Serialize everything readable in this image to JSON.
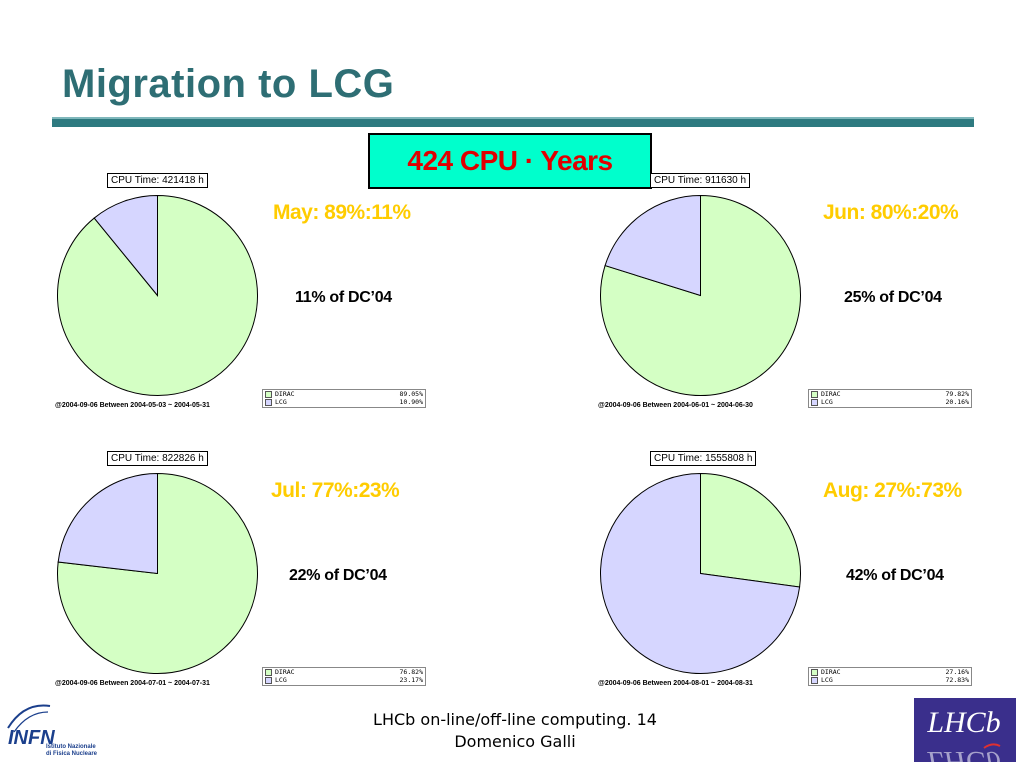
{
  "slide": {
    "title": "Migration to LCG",
    "total_label": "424 CPU · Years",
    "footer_line1": "LHCb on-line/off-line computing. 14",
    "footer_line2": "Domenico Galli",
    "logo_left_text": "INFN",
    "logo_left_sub1": "Istituto Nazionale",
    "logo_left_sub2": "di Fisica Nucleare",
    "logo_right_text": "LHCb"
  },
  "colors": {
    "title": "#2e6e74",
    "dirac": "#d4ffc4",
    "lcg": "#d6d6ff",
    "month_label": "#ffcc00",
    "total_text": "#e00000",
    "total_bg": "#00ffcc"
  },
  "panels": [
    {
      "cpu_time": "CPU Time: 421418 h",
      "month_label": "May: 89%:11%",
      "dc_label": "11% of DC’04",
      "footnote": "@2004-09-06  Between  2004-05-03 ~ 2004-05-31",
      "legend": [
        {
          "name": "DIRAC",
          "pct": "89.05%"
        },
        {
          "name": "LCG",
          "pct": "10.90%"
        }
      ]
    },
    {
      "cpu_time": "CPU Time: 911630 h",
      "month_label": "Jun: 80%:20%",
      "dc_label": "25% of DC’04",
      "footnote": "@2004-09-06  Between  2004-06-01 ~ 2004-06-30",
      "legend": [
        {
          "name": "DIRAC",
          "pct": "79.82%"
        },
        {
          "name": "LCG",
          "pct": "20.16%"
        }
      ]
    },
    {
      "cpu_time": "CPU Time: 822826 h",
      "month_label": "Jul: 77%:23%",
      "dc_label": "22% of DC’04",
      "footnote": "@2004-09-06  Between  2004-07-01 ~ 2004-07-31",
      "legend": [
        {
          "name": "DIRAC",
          "pct": "76.82%"
        },
        {
          "name": "LCG",
          "pct": "23.17%"
        }
      ]
    },
    {
      "cpu_time": "CPU Time: 1555808 h",
      "month_label": "Aug: 27%:73%",
      "dc_label": "42% of DC’04",
      "footnote": "@2004-09-06  Between  2004-08-01 ~ 2004-08-31",
      "legend": [
        {
          "name": "DIRAC",
          "pct": "27.16%"
        },
        {
          "name": "LCG",
          "pct": "72.83%"
        }
      ]
    }
  ],
  "chart_data": [
    {
      "type": "pie",
      "categories": [
        "DIRAC",
        "LCG"
      ],
      "values": [
        89.05,
        10.9
      ],
      "title": "CPU Time: 421418 h"
    },
    {
      "type": "pie",
      "categories": [
        "DIRAC",
        "LCG"
      ],
      "values": [
        79.82,
        20.16
      ],
      "title": "CPU Time: 911630 h"
    },
    {
      "type": "pie",
      "categories": [
        "DIRAC",
        "LCG"
      ],
      "values": [
        76.82,
        23.17
      ],
      "title": "CPU Time: 822826 h"
    },
    {
      "type": "pie",
      "categories": [
        "DIRAC",
        "LCG"
      ],
      "values": [
        27.16,
        72.83
      ],
      "title": "CPU Time: 1555808 h"
    }
  ]
}
